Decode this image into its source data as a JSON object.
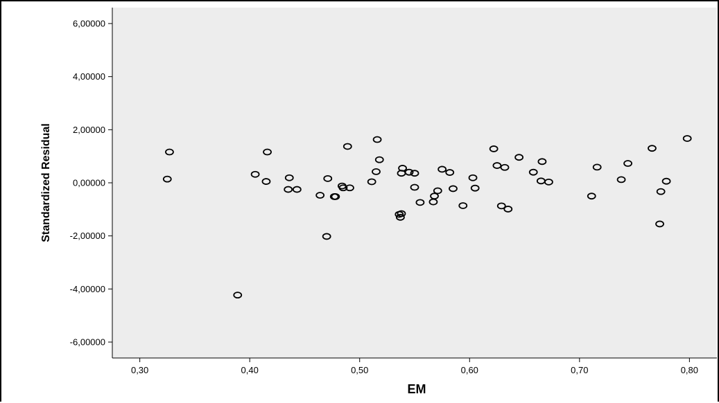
{
  "chart_data": {
    "type": "scatter",
    "title": "",
    "xlabel": "EM",
    "ylabel": "Standardized Residual",
    "xlim": [
      0.275,
      0.825
    ],
    "ylim": [
      -6.6,
      6.6
    ],
    "grid": false,
    "plot_background": "#ededed",
    "marker_color": "#000000",
    "x_ticks": [
      {
        "value": 0.3,
        "label": "0,30"
      },
      {
        "value": 0.4,
        "label": "0,40"
      },
      {
        "value": 0.5,
        "label": "0,50"
      },
      {
        "value": 0.6,
        "label": "0,60"
      },
      {
        "value": 0.7,
        "label": "0,70"
      },
      {
        "value": 0.8,
        "label": "0,80"
      }
    ],
    "y_ticks": [
      {
        "value": 6,
        "label": "6,00000"
      },
      {
        "value": 4,
        "label": "4,00000"
      },
      {
        "value": 2,
        "label": "2,00000"
      },
      {
        "value": 0,
        "label": "0,00000"
      },
      {
        "value": -2,
        "label": "-2,00000"
      },
      {
        "value": -4,
        "label": "-4,00000"
      },
      {
        "value": -6,
        "label": "-6,00000"
      }
    ],
    "points": [
      {
        "x": 0.325,
        "y": 0.14
      },
      {
        "x": 0.327,
        "y": 1.16
      },
      {
        "x": 0.389,
        "y": -4.23
      },
      {
        "x": 0.405,
        "y": 0.32
      },
      {
        "x": 0.415,
        "y": 0.05
      },
      {
        "x": 0.416,
        "y": 1.16
      },
      {
        "x": 0.435,
        "y": -0.25
      },
      {
        "x": 0.436,
        "y": 0.19
      },
      {
        "x": 0.443,
        "y": -0.25
      },
      {
        "x": 0.464,
        "y": -0.47
      },
      {
        "x": 0.47,
        "y": -2.02
      },
      {
        "x": 0.471,
        "y": 0.16
      },
      {
        "x": 0.477,
        "y": -0.52
      },
      {
        "x": 0.478,
        "y": -0.52
      },
      {
        "x": 0.484,
        "y": -0.12
      },
      {
        "x": 0.485,
        "y": -0.19
      },
      {
        "x": 0.489,
        "y": 1.37
      },
      {
        "x": 0.491,
        "y": -0.19
      },
      {
        "x": 0.511,
        "y": 0.04
      },
      {
        "x": 0.515,
        "y": 0.42
      },
      {
        "x": 0.516,
        "y": 1.63
      },
      {
        "x": 0.518,
        "y": 0.87
      },
      {
        "x": 0.536,
        "y": -1.19
      },
      {
        "x": 0.537,
        "y": -1.3
      },
      {
        "x": 0.538,
        "y": -1.16
      },
      {
        "x": 0.538,
        "y": 0.36
      },
      {
        "x": 0.539,
        "y": 0.55
      },
      {
        "x": 0.545,
        "y": 0.4
      },
      {
        "x": 0.55,
        "y": 0.36
      },
      {
        "x": 0.55,
        "y": -0.17
      },
      {
        "x": 0.555,
        "y": -0.74
      },
      {
        "x": 0.567,
        "y": -0.72
      },
      {
        "x": 0.568,
        "y": -0.5
      },
      {
        "x": 0.571,
        "y": -0.3
      },
      {
        "x": 0.575,
        "y": 0.51
      },
      {
        "x": 0.582,
        "y": 0.39
      },
      {
        "x": 0.585,
        "y": -0.22
      },
      {
        "x": 0.594,
        "y": -0.86
      },
      {
        "x": 0.603,
        "y": 0.19
      },
      {
        "x": 0.605,
        "y": -0.2
      },
      {
        "x": 0.622,
        "y": 1.28
      },
      {
        "x": 0.625,
        "y": 0.65
      },
      {
        "x": 0.629,
        "y": -0.87
      },
      {
        "x": 0.632,
        "y": 0.58
      },
      {
        "x": 0.635,
        "y": -0.99
      },
      {
        "x": 0.645,
        "y": 0.96
      },
      {
        "x": 0.658,
        "y": 0.4
      },
      {
        "x": 0.665,
        "y": 0.07
      },
      {
        "x": 0.666,
        "y": 0.8
      },
      {
        "x": 0.672,
        "y": 0.03
      },
      {
        "x": 0.711,
        "y": -0.5
      },
      {
        "x": 0.716,
        "y": 0.59
      },
      {
        "x": 0.738,
        "y": 0.12
      },
      {
        "x": 0.744,
        "y": 0.73
      },
      {
        "x": 0.766,
        "y": 1.3
      },
      {
        "x": 0.773,
        "y": -1.55
      },
      {
        "x": 0.774,
        "y": -0.33
      },
      {
        "x": 0.779,
        "y": 0.06
      },
      {
        "x": 0.798,
        "y": 1.67
      }
    ]
  }
}
